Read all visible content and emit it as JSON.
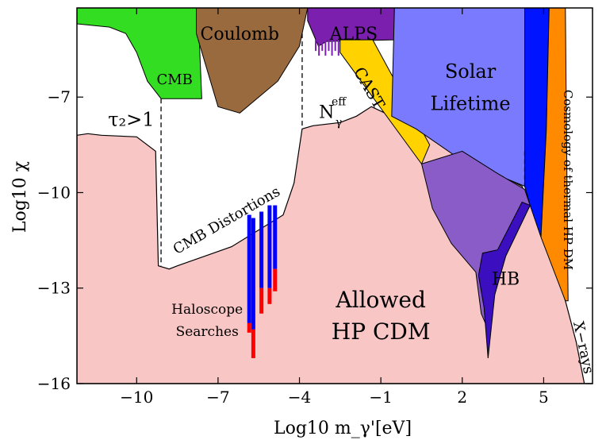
{
  "chart_data": {
    "type": "area",
    "title": "",
    "xlabel": "Log10 m_γ'[eV]",
    "ylabel": "Log10 χ",
    "xlim": [
      -12.2,
      6.8
    ],
    "ylim": [
      -16,
      -4.2
    ],
    "x_ticks": [
      -10,
      -7,
      -4,
      -1,
      2,
      5
    ],
    "y_ticks": [
      -7,
      -10,
      -13,
      -16
    ],
    "grid": false,
    "colors": {
      "allowed": "#f9c6c6",
      "cmb": "#33dd22",
      "coulomb": "#9a6a3f",
      "alps": "#7a1fae",
      "cast": "#ffd200",
      "cast_edge": "#ffee22",
      "solar": "#7a7aff",
      "hb": "#3b0fbf",
      "hb_overlap": "#8a5cc7",
      "blue_band": "#0014ff",
      "cosmology": "#ff8a00",
      "haloscope_blue": "#0000ff",
      "haloscope_red": "#ff0000"
    },
    "regions": {
      "allowed_hp_cdm_boundary": [
        [
          -12.2,
          -8.2
        ],
        [
          -11.8,
          -8.15
        ],
        [
          -11.3,
          -8.2
        ],
        [
          -10,
          -8.25
        ],
        [
          -9.3,
          -8.7
        ],
        [
          -9.2,
          -12.3
        ],
        [
          -8.8,
          -12.4
        ],
        [
          -8.5,
          -12.3
        ],
        [
          -6.5,
          -11.7
        ],
        [
          -4.6,
          -10.7
        ],
        [
          -4.2,
          -9.7
        ],
        [
          -3.9,
          -8.0
        ],
        [
          -3.5,
          -7.9
        ],
        [
          -2.5,
          -7.8
        ],
        [
          -1.9,
          -7.6
        ],
        [
          -1.35,
          -7.3
        ],
        [
          -0.6,
          -7.6
        ],
        [
          0.3,
          -8.0
        ],
        [
          2,
          -8.7
        ],
        [
          3.3,
          -9.4
        ],
        [
          4.2,
          -9.8
        ],
        [
          5.1,
          -11.6
        ],
        [
          5.8,
          -13.4
        ],
        [
          6.2,
          -14.7
        ],
        [
          6.5,
          -16
        ]
      ],
      "cmb": [
        [
          -12.2,
          -4.2
        ],
        [
          -7.6,
          -4.2
        ],
        [
          -7.7,
          -5.0
        ],
        [
          -7.6,
          -7.05
        ],
        [
          -9.1,
          -7.05
        ],
        [
          -9.6,
          -6.5
        ],
        [
          -10,
          -5.6
        ],
        [
          -10.4,
          -5.0
        ],
        [
          -11,
          -4.8
        ],
        [
          -12.2,
          -4.7
        ]
      ],
      "coulomb": [
        [
          -7.8,
          -4.2
        ],
        [
          -3.7,
          -4.2
        ],
        [
          -4.0,
          -5.4
        ],
        [
          -4.8,
          -6.5
        ],
        [
          -6.2,
          -7.5
        ],
        [
          -7.0,
          -7.3
        ],
        [
          -7.8,
          -5.0
        ]
      ],
      "alps": [
        [
          -3.7,
          -4.2
        ],
        [
          -0.5,
          -4.2
        ],
        [
          -0.5,
          -5.2
        ],
        [
          -3.0,
          -5.25
        ],
        [
          -3.3,
          -5.4
        ],
        [
          -3.7,
          -4.6
        ]
      ],
      "cast": [
        [
          -2.5,
          -5.2
        ],
        [
          -1.3,
          -5.2
        ],
        [
          0.8,
          -8.5
        ],
        [
          0.5,
          -9.1
        ],
        [
          -2.5,
          -5.6
        ]
      ],
      "solar": [
        [
          -0.5,
          -4.2
        ],
        [
          4.4,
          -4.2
        ],
        [
          4.3,
          -9.8
        ],
        [
          2,
          -9.0
        ],
        [
          0.3,
          -8.0
        ],
        [
          -0.6,
          -7.6
        ]
      ],
      "hb": [
        [
          4.3,
          -9.9
        ],
        [
          4.5,
          -10.4
        ],
        [
          3.6,
          -12.0
        ],
        [
          3.2,
          -13.2
        ],
        [
          2.9,
          -14.2
        ],
        [
          2.7,
          -13.8
        ],
        [
          2.5,
          -12.5
        ],
        [
          1.6,
          -11.6
        ],
        [
          0.9,
          -10.5
        ],
        [
          0.5,
          -9.1
        ],
        [
          2,
          -8.7
        ],
        [
          3.3,
          -9.4
        ]
      ],
      "blue_band": [
        [
          4.3,
          -4.2
        ],
        [
          5.2,
          -4.2
        ],
        [
          5.1,
          -8.0
        ],
        [
          4.9,
          -11.4
        ],
        [
          4.5,
          -10.4
        ],
        [
          4.3,
          -9.8
        ]
      ],
      "cosmology": [
        [
          5.2,
          -4.2
        ],
        [
          5.8,
          -4.2
        ],
        [
          5.9,
          -13.4
        ],
        [
          5.8,
          -13.4
        ],
        [
          4.9,
          -11.4
        ],
        [
          5.1,
          -8.0
        ]
      ],
      "haloscope_lines": [
        {
          "x": -5.85,
          "top": -10.7,
          "mid": -14.1,
          "bottom": -14.4
        },
        {
          "x": -5.7,
          "top": -10.8,
          "mid": -14.3,
          "bottom": -15.2
        },
        {
          "x": -5.4,
          "top": -10.6,
          "mid": -13.0,
          "bottom": -13.8
        },
        {
          "x": -5.1,
          "top": -10.4,
          "mid": -13.0,
          "bottom": -13.5
        },
        {
          "x": -4.9,
          "top": -10.4,
          "mid": -12.4,
          "bottom": -13.1
        }
      ]
    },
    "annotations": [
      {
        "text": "CMB",
        "x": -8.6,
        "y": -6.6,
        "size": 18
      },
      {
        "text": "Coulomb",
        "x": -6.2,
        "y": -5.2,
        "size": 22
      },
      {
        "text": "ALPS",
        "x": -2.0,
        "y": -5.2,
        "size": 22
      },
      {
        "text": "CAST",
        "x": -1.6,
        "y": -6.8,
        "size": 20,
        "rotate": 60
      },
      {
        "text": "Solar",
        "x": 2.3,
        "y": -6.4,
        "size": 24
      },
      {
        "text": "Lifetime",
        "x": 2.3,
        "y": -7.4,
        "size": 24
      },
      {
        "text": "τ₂>1",
        "x": -10.2,
        "y": -7.9,
        "size": 24
      },
      {
        "text": "N",
        "x": -3.0,
        "y": -7.65,
        "size": 22
      },
      {
        "text": "γ",
        "x": -2.55,
        "y": -7.9,
        "size": 14
      },
      {
        "text": "eff",
        "x": -2.55,
        "y": -7.25,
        "size": 14
      },
      {
        "text": "CMB Distortions",
        "x": -6.6,
        "y": -11.0,
        "size": 18,
        "rotate": -30
      },
      {
        "text": "Haloscope",
        "x": -7.4,
        "y": -13.8,
        "size": 17
      },
      {
        "text": "Searches",
        "x": -7.4,
        "y": -14.5,
        "size": 17
      },
      {
        "text": "Allowed",
        "x": -1.0,
        "y": -13.6,
        "size": 28
      },
      {
        "text": "HP CDM",
        "x": -1.0,
        "y": -14.6,
        "size": 28
      },
      {
        "text": "HB",
        "x": 3.6,
        "y": -12.9,
        "size": 22
      },
      {
        "text": "Cosmology of thermal HP DM",
        "x": 5.75,
        "y": -9.6,
        "size": 15,
        "rotate": 90
      },
      {
        "text": "X−rays",
        "x": 6.3,
        "y": -14.9,
        "size": 18,
        "rotate": 78
      }
    ],
    "dashed_lines": [
      {
        "x": -9.1,
        "y1": -7.05,
        "y2": -12.3
      },
      {
        "x": -3.9,
        "y1": -5.0,
        "y2": -8.0
      },
      {
        "x": 4.3,
        "y1": -8.7,
        "y2": -9.8
      }
    ]
  }
}
